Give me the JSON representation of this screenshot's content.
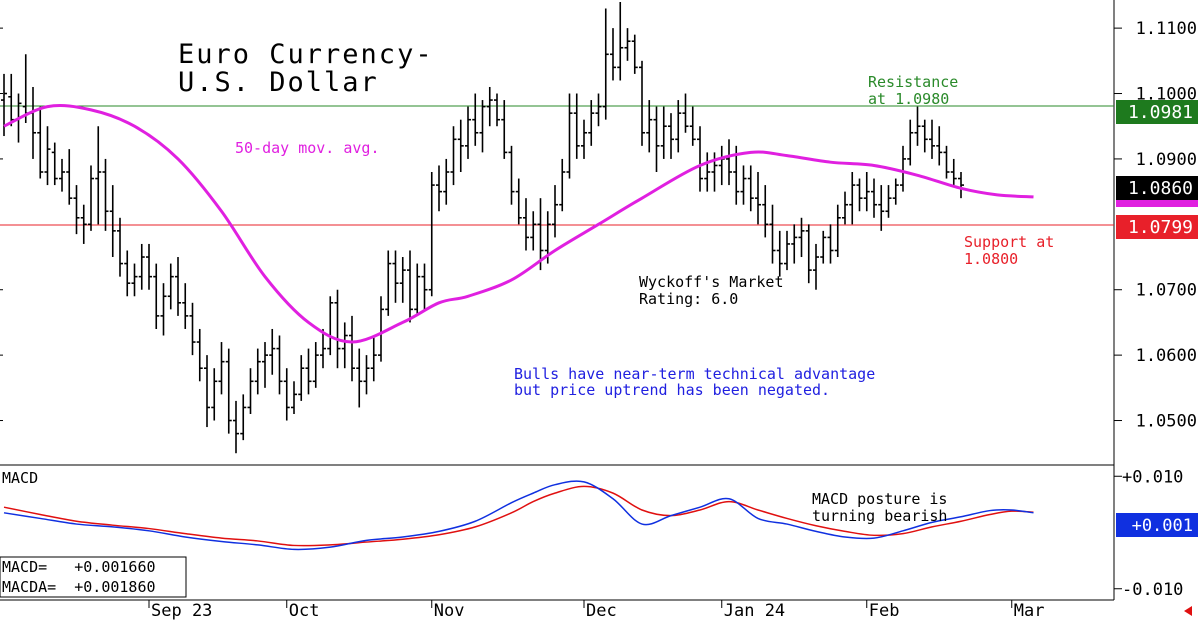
{
  "title_lines": [
    "Euro Currency-",
    "U.S. Dollar"
  ],
  "ma_label": "50-day mov. avg.",
  "resistance": {
    "level": 1.0981,
    "label_lines": [
      "Resistance",
      "at 1.0980"
    ],
    "tag": "1.0981",
    "color": "#2a8a2a"
  },
  "support": {
    "level": 1.0799,
    "label_lines": [
      "Support at",
      "1.0800"
    ],
    "tag": "1.0799",
    "color": "#e8202a"
  },
  "last_price": {
    "level": 1.086,
    "tag": "1.0860"
  },
  "ma_tag_level": 1.0845,
  "rating_lines": [
    "Wyckoff's Market",
    "Rating: 6.0"
  ],
  "commentary_lines": [
    "Bulls have near-term technical advantage",
    "but price uptrend has been negated."
  ],
  "macd_panel": {
    "label": "MACD",
    "posture_lines": [
      "MACD posture is",
      "turning bearish"
    ],
    "values": [
      "MACD=   +0.001660",
      "MACDA=  +0.001860"
    ],
    "tag": "+0.001",
    "ticks": [
      {
        "v": 0.01,
        "label": "+0.010"
      },
      {
        "v": -0.01,
        "label": "-0.010"
      }
    ]
  },
  "colors": {
    "ma": "#e020e0",
    "macd": "#1030e0",
    "macda": "#e01010",
    "commentary": "#2020e0"
  },
  "chart_data": [
    {
      "type": "ohlc",
      "title": "Euro Currency- U.S. Dollar",
      "ylim": [
        1.0432,
        1.1143
      ],
      "y_ticks": [
        1.11,
        1.1,
        1.09,
        1.07,
        1.06,
        1.05
      ],
      "x_ticks": [
        "Sep 23",
        "Oct",
        "Nov",
        "Dec",
        "Jan 24",
        "Feb",
        "Mar"
      ],
      "x_tick_index": [
        20,
        39,
        59,
        80,
        99,
        119,
        139
      ],
      "bars": [
        [
          1.099,
          1.103,
          1.0935,
          1.1
        ],
        [
          1.0995,
          1.103,
          1.095,
          1.096
        ],
        [
          1.096,
          1.1,
          1.0925,
          1.0985
        ],
        [
          1.098,
          1.106,
          1.0955,
          1.097
        ],
        [
          1.097,
          1.101,
          1.09,
          1.094
        ],
        [
          1.094,
          1.098,
          1.087,
          1.088
        ],
        [
          1.088,
          1.095,
          1.086,
          1.0915
        ],
        [
          1.091,
          1.0925,
          1.086,
          1.087
        ],
        [
          1.087,
          1.09,
          1.085,
          1.088
        ],
        [
          1.088,
          1.0915,
          1.083,
          1.084
        ],
        [
          1.084,
          1.086,
          1.0785,
          1.081
        ],
        [
          1.081,
          1.083,
          1.077,
          1.08
        ],
        [
          1.08,
          1.089,
          1.079,
          1.087
        ],
        [
          1.087,
          1.095,
          1.08,
          1.088
        ],
        [
          1.088,
          1.09,
          1.079,
          1.082
        ],
        [
          1.082,
          1.086,
          1.075,
          1.079
        ],
        [
          1.079,
          1.081,
          1.072,
          1.074
        ],
        [
          1.074,
          1.076,
          1.069,
          1.071
        ],
        [
          1.071,
          1.074,
          1.069,
          1.072
        ],
        [
          1.072,
          1.077,
          1.07,
          1.075
        ],
        [
          1.075,
          1.077,
          1.07,
          1.072
        ],
        [
          1.072,
          1.074,
          1.064,
          1.066
        ],
        [
          1.066,
          1.071,
          1.063,
          1.069
        ],
        [
          1.069,
          1.074,
          1.067,
          1.072
        ],
        [
          1.072,
          1.075,
          1.066,
          1.068
        ],
        [
          1.068,
          1.071,
          1.064,
          1.066
        ],
        [
          1.066,
          1.068,
          1.06,
          1.062
        ],
        [
          1.062,
          1.064,
          1.056,
          1.058
        ],
        [
          1.058,
          1.06,
          1.049,
          1.052
        ],
        [
          1.052,
          1.058,
          1.05,
          1.056
        ],
        [
          1.056,
          1.062,
          1.054,
          1.059
        ],
        [
          1.059,
          1.061,
          1.048,
          1.05
        ],
        [
          1.05,
          1.053,
          1.045,
          1.048
        ],
        [
          1.048,
          1.054,
          1.047,
          1.052
        ],
        [
          1.052,
          1.058,
          1.051,
          1.056
        ],
        [
          1.056,
          1.061,
          1.054,
          1.059
        ],
        [
          1.059,
          1.062,
          1.055,
          1.06
        ],
        [
          1.06,
          1.064,
          1.057,
          1.061
        ],
        [
          1.061,
          1.063,
          1.054,
          1.056
        ],
        [
          1.056,
          1.058,
          1.05,
          1.052
        ],
        [
          1.052,
          1.056,
          1.051,
          1.054
        ],
        [
          1.054,
          1.06,
          1.053,
          1.058
        ],
        [
          1.058,
          1.061,
          1.054,
          1.056
        ],
        [
          1.056,
          1.062,
          1.055,
          1.06
        ],
        [
          1.06,
          1.064,
          1.058,
          1.061
        ],
        [
          1.061,
          1.069,
          1.06,
          1.068
        ],
        [
          1.068,
          1.07,
          1.058,
          1.061
        ],
        [
          1.061,
          1.065,
          1.058,
          1.063
        ],
        [
          1.063,
          1.066,
          1.056,
          1.058
        ],
        [
          1.058,
          1.061,
          1.052,
          1.056
        ],
        [
          1.056,
          1.06,
          1.054,
          1.058
        ],
        [
          1.058,
          1.063,
          1.056,
          1.06
        ],
        [
          1.06,
          1.069,
          1.059,
          1.067
        ],
        [
          1.067,
          1.076,
          1.066,
          1.074
        ],
        [
          1.074,
          1.076,
          1.068,
          1.071
        ],
        [
          1.071,
          1.075,
          1.068,
          1.073
        ],
        [
          1.073,
          1.076,
          1.065,
          1.067
        ],
        [
          1.067,
          1.074,
          1.066,
          1.072
        ],
        [
          1.072,
          1.074,
          1.067,
          1.07
        ],
        [
          1.07,
          1.088,
          1.069,
          1.086
        ],
        [
          1.086,
          1.089,
          1.082,
          1.085
        ],
        [
          1.085,
          1.09,
          1.083,
          1.088
        ],
        [
          1.088,
          1.095,
          1.086,
          1.093
        ],
        [
          1.093,
          1.096,
          1.088,
          1.092
        ],
        [
          1.092,
          1.098,
          1.09,
          1.096
        ],
        [
          1.096,
          1.1,
          1.092,
          1.094
        ],
        [
          1.094,
          1.099,
          1.091,
          1.098
        ],
        [
          1.098,
          1.101,
          1.095,
          1.099
        ],
        [
          1.099,
          1.1,
          1.095,
          1.096
        ],
        [
          1.096,
          1.099,
          1.09,
          1.091
        ],
        [
          1.091,
          1.092,
          1.083,
          1.085
        ],
        [
          1.085,
          1.087,
          1.08,
          1.081
        ],
        [
          1.081,
          1.084,
          1.076,
          1.078
        ],
        [
          1.078,
          1.082,
          1.076,
          1.08
        ],
        [
          1.08,
          1.084,
          1.073,
          1.076
        ],
        [
          1.076,
          1.082,
          1.074,
          1.08
        ],
        [
          1.08,
          1.086,
          1.078,
          1.083
        ],
        [
          1.083,
          1.09,
          1.082,
          1.088
        ],
        [
          1.088,
          1.1,
          1.087,
          1.097
        ],
        [
          1.097,
          1.1,
          1.09,
          1.092
        ],
        [
          1.092,
          1.096,
          1.09,
          1.094
        ],
        [
          1.094,
          1.099,
          1.092,
          1.097
        ],
        [
          1.097,
          1.1,
          1.095,
          1.098
        ],
        [
          1.098,
          1.113,
          1.096,
          1.106
        ],
        [
          1.106,
          1.11,
          1.102,
          1.104
        ],
        [
          1.104,
          1.114,
          1.102,
          1.107
        ],
        [
          1.107,
          1.11,
          1.105,
          1.108
        ],
        [
          1.108,
          1.109,
          1.103,
          1.104
        ],
        [
          1.104,
          1.105,
          1.092,
          1.094
        ],
        [
          1.094,
          1.099,
          1.091,
          1.096
        ],
        [
          1.096,
          1.098,
          1.088,
          1.092
        ],
        [
          1.092,
          1.098,
          1.09,
          1.095
        ],
        [
          1.095,
          1.097,
          1.09,
          1.093
        ],
        [
          1.093,
          1.099,
          1.091,
          1.097
        ],
        [
          1.097,
          1.1,
          1.094,
          1.095
        ],
        [
          1.095,
          1.098,
          1.092,
          1.093
        ],
        [
          1.093,
          1.095,
          1.085,
          1.087
        ],
        [
          1.087,
          1.091,
          1.085,
          1.088
        ],
        [
          1.088,
          1.091,
          1.085,
          1.089
        ],
        [
          1.089,
          1.092,
          1.086,
          1.09
        ],
        [
          1.09,
          1.093,
          1.086,
          1.088
        ],
        [
          1.088,
          1.092,
          1.083,
          1.085
        ],
        [
          1.085,
          1.089,
          1.083,
          1.087
        ],
        [
          1.087,
          1.089,
          1.082,
          1.084
        ],
        [
          1.084,
          1.088,
          1.08,
          1.083
        ],
        [
          1.083,
          1.086,
          1.078,
          1.08
        ],
        [
          1.08,
          1.083,
          1.074,
          1.076
        ],
        [
          1.076,
          1.079,
          1.072,
          1.074
        ],
        [
          1.074,
          1.079,
          1.073,
          1.077
        ],
        [
          1.077,
          1.08,
          1.074,
          1.078
        ],
        [
          1.078,
          1.081,
          1.075,
          1.079
        ],
        [
          1.079,
          1.08,
          1.071,
          1.073
        ],
        [
          1.073,
          1.077,
          1.07,
          1.075
        ],
        [
          1.075,
          1.079,
          1.074,
          1.078
        ],
        [
          1.078,
          1.08,
          1.074,
          1.076
        ],
        [
          1.076,
          1.083,
          1.075,
          1.081
        ],
        [
          1.081,
          1.085,
          1.08,
          1.083
        ],
        [
          1.083,
          1.088,
          1.08,
          1.086
        ],
        [
          1.086,
          1.087,
          1.082,
          1.084
        ],
        [
          1.084,
          1.088,
          1.082,
          1.085
        ],
        [
          1.085,
          1.087,
          1.081,
          1.083
        ],
        [
          1.083,
          1.086,
          1.079,
          1.082
        ],
        [
          1.082,
          1.086,
          1.081,
          1.084
        ],
        [
          1.084,
          1.087,
          1.083,
          1.086
        ],
        [
          1.086,
          1.092,
          1.085,
          1.09
        ],
        [
          1.09,
          1.096,
          1.089,
          1.094
        ],
        [
          1.094,
          1.098,
          1.092,
          1.095
        ],
        [
          1.095,
          1.096,
          1.091,
          1.093
        ],
        [
          1.093,
          1.096,
          1.09,
          1.092
        ],
        [
          1.092,
          1.095,
          1.089,
          1.091
        ],
        [
          1.091,
          1.092,
          1.087,
          1.088
        ],
        [
          1.088,
          1.09,
          1.086,
          1.087
        ],
        [
          1.087,
          1.088,
          1.084,
          1.086
        ]
      ],
      "ma_50": {
        "index": [
          0,
          6,
          12,
          18,
          24,
          30,
          36,
          42,
          48,
          55,
          60,
          64,
          70,
          76,
          82,
          88,
          96,
          103,
          108,
          114,
          120,
          126,
          132,
          137,
          142
        ],
        "values": [
          1.095,
          1.098,
          1.0975,
          1.095,
          1.09,
          1.082,
          1.072,
          1.065,
          1.062,
          1.065,
          1.068,
          1.069,
          1.0715,
          1.076,
          1.08,
          1.084,
          1.089,
          1.091,
          1.0905,
          1.0895,
          1.089,
          1.0875,
          1.0855,
          1.0845,
          1.0842
        ]
      },
      "support": 1.0799,
      "resistance": 1.0981
    },
    {
      "type": "line",
      "title": "MACD",
      "ylim": [
        -0.012,
        0.012
      ],
      "series": [
        {
          "name": "MACD",
          "index": [
            0,
            5,
            10,
            15,
            20,
            25,
            30,
            35,
            40,
            45,
            50,
            55,
            60,
            65,
            70,
            73,
            76,
            80,
            84,
            88,
            92,
            96,
            100,
            104,
            108,
            112,
            116,
            120,
            124,
            128,
            132,
            136,
            139,
            142
          ],
          "values": [
            0.0035,
            0.0025,
            0.0015,
            0.001,
            0.0003,
            -0.0008,
            -0.0016,
            -0.0022,
            -0.003,
            -0.0026,
            -0.0014,
            -0.0008,
            0.0002,
            0.002,
            0.0053,
            0.007,
            0.0085,
            0.009,
            0.006,
            0.0015,
            0.003,
            0.0045,
            0.006,
            0.0025,
            0.0015,
            0.0002,
            -0.0008,
            -0.001,
            0.0003,
            0.0018,
            0.0028,
            0.0039,
            0.004,
            0.0035
          ]
        },
        {
          "name": "MACDA",
          "index": [
            0,
            5,
            10,
            15,
            20,
            25,
            30,
            35,
            40,
            45,
            50,
            55,
            60,
            65,
            70,
            73,
            76,
            80,
            84,
            88,
            92,
            96,
            100,
            104,
            108,
            112,
            116,
            120,
            124,
            128,
            132,
            136,
            139,
            142
          ],
          "values": [
            0.0045,
            0.0032,
            0.002,
            0.0013,
            0.0007,
            -0.0002,
            -0.001,
            -0.0015,
            -0.0023,
            -0.0022,
            -0.0017,
            -0.0012,
            -0.0004,
            0.001,
            0.0035,
            0.0055,
            0.007,
            0.0082,
            0.007,
            0.004,
            0.003,
            0.004,
            0.0055,
            0.004,
            0.0025,
            0.0012,
            0.0002,
            -0.0005,
            -0.0002,
            0.001,
            0.002,
            0.0032,
            0.0038,
            0.0036
          ]
        }
      ]
    }
  ]
}
